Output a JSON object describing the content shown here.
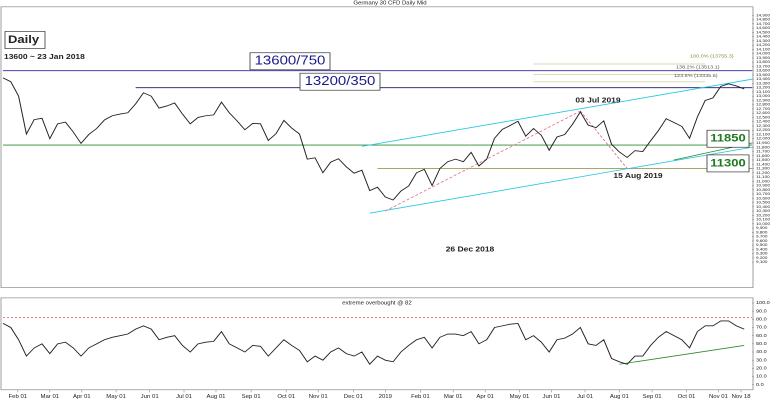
{
  "chart_data": [
    {
      "type": "line",
      "title": "Germany 30 CFD Daily Mid",
      "x": [
        0,
        1,
        2,
        3,
        4,
        5,
        6,
        7,
        8,
        9,
        10,
        11,
        12,
        13,
        14,
        15,
        16,
        17,
        18,
        19,
        20,
        21,
        22,
        23,
        24,
        25,
        26,
        27,
        28,
        29,
        30,
        31,
        32,
        33,
        34,
        35,
        36,
        37,
        38,
        39,
        40,
        41,
        42,
        43,
        44,
        45,
        46,
        47,
        48,
        49,
        50,
        51,
        52,
        53,
        54,
        55,
        56,
        57,
        58,
        59,
        60,
        61,
        62,
        63,
        64,
        65,
        66,
        67,
        68,
        69,
        70,
        71,
        72,
        73,
        74,
        75,
        76,
        77,
        78,
        79,
        80,
        81,
        82,
        83,
        84,
        85,
        86,
        87,
        88,
        89,
        90,
        91,
        92,
        93,
        94,
        95
      ],
      "series": [
        {
          "color": "#222222",
          "values": [
            13430,
            13340,
            13000,
            12110,
            12450,
            12480,
            12000,
            12350,
            12390,
            12160,
            11890,
            12100,
            12240,
            12440,
            12540,
            12580,
            12610,
            12820,
            13080,
            13000,
            12720,
            12770,
            12840,
            12580,
            12350,
            12500,
            12540,
            12560,
            12860,
            12610,
            12420,
            12210,
            12360,
            12350,
            11960,
            12120,
            12430,
            12250,
            12110,
            11520,
            11550,
            11200,
            11450,
            11530,
            11340,
            11190,
            11260,
            10780,
            10860,
            10630,
            10560,
            10770,
            10890,
            11200,
            11280,
            10900,
            11300,
            11460,
            11520,
            11460,
            11680,
            11360,
            11520,
            12010,
            12220,
            12310,
            12410,
            12060,
            12240,
            12080,
            11730,
            12040,
            12100,
            12340,
            12630,
            12320,
            12260,
            12420,
            11870,
            11690,
            11560,
            11720,
            11700,
            11950,
            12190,
            12470,
            12380,
            12290,
            12010,
            12510,
            12900,
            12960,
            13230,
            13290,
            13240,
            13170
          ]
        }
      ],
      "xlim": [
        0,
        96
      ],
      "ylim": [
        8600,
        15100
      ],
      "yticks": [
        {
          "value": 9100,
          "label": "9,100"
        },
        {
          "value": 9200,
          "label": "9,200"
        },
        {
          "value": 9300,
          "label": "9,300"
        },
        {
          "value": 9400,
          "label": "9,400"
        },
        {
          "value": 9500,
          "label": "9,500"
        },
        {
          "value": 9600,
          "label": "9,600"
        },
        {
          "value": 9700,
          "label": "9,700"
        },
        {
          "value": 9800,
          "label": "9,800"
        },
        {
          "value": 9900,
          "label": "9,900"
        },
        {
          "value": 10000,
          "label": "10,000"
        },
        {
          "value": 10100,
          "label": "10,100"
        },
        {
          "value": 10200,
          "label": "10,200"
        },
        {
          "value": 10300,
          "label": "10,300"
        },
        {
          "value": 10400,
          "label": "10,400"
        },
        {
          "value": 10500,
          "label": "10,500"
        },
        {
          "value": 10600,
          "label": "10,600"
        },
        {
          "value": 10700,
          "label": "10,700"
        },
        {
          "value": 10800,
          "label": "10,800"
        },
        {
          "value": 10900,
          "label": "10,900"
        },
        {
          "value": 11000,
          "label": "11,000"
        },
        {
          "value": 11100,
          "label": "11,100"
        },
        {
          "value": 11200,
          "label": "11,200"
        },
        {
          "value": 11300,
          "label": "11,300"
        },
        {
          "value": 11400,
          "label": "11,400"
        },
        {
          "value": 11500,
          "label": "11,500"
        },
        {
          "value": 11600,
          "label": "11,600"
        },
        {
          "value": 11700,
          "label": "11,700"
        },
        {
          "value": 11800,
          "label": "11,800"
        },
        {
          "value": 11900,
          "label": "11,900"
        },
        {
          "value": 12000,
          "label": "12,000"
        },
        {
          "value": 12100,
          "label": "12,100"
        },
        {
          "value": 12200,
          "label": "12,200"
        },
        {
          "value": 12300,
          "label": "12,300"
        },
        {
          "value": 12400,
          "label": "12,400"
        },
        {
          "value": 12500,
          "label": "12,500"
        },
        {
          "value": 12600,
          "label": "12,600"
        },
        {
          "value": 12700,
          "label": "12,700"
        },
        {
          "value": 12800,
          "label": "12,800"
        },
        {
          "value": 12900,
          "label": "12,900"
        },
        {
          "value": 13000,
          "label": "13,000"
        },
        {
          "value": 13100,
          "label": "13,100"
        },
        {
          "value": 13200,
          "label": "13,200"
        },
        {
          "value": 13300,
          "label": "13,300"
        },
        {
          "value": 13400,
          "label": "13,400"
        },
        {
          "value": 13500,
          "label": "13,500"
        },
        {
          "value": 13600,
          "label": "13,600"
        },
        {
          "value": 13700,
          "label": "13,700"
        },
        {
          "value": 13800,
          "label": "13,800"
        },
        {
          "value": 13900,
          "label": "13,900"
        },
        {
          "value": 14000,
          "label": "14,000"
        },
        {
          "value": 14100,
          "label": "14,100"
        },
        {
          "value": 14200,
          "label": "14,200"
        },
        {
          "value": 14300,
          "label": "14,300"
        },
        {
          "value": 14400,
          "label": "14,400"
        },
        {
          "value": 14500,
          "label": "14,500"
        },
        {
          "value": 14600,
          "label": "14,600"
        },
        {
          "value": 14700,
          "label": "14,700"
        },
        {
          "value": 14800,
          "label": "14,800"
        },
        {
          "value": 14900,
          "label": "14,900"
        }
      ],
      "levels": [
        {
          "value": 13600,
          "x": [
            0,
            96
          ],
          "color": "#2a2aa0"
        },
        {
          "value": 13200,
          "x": [
            17,
            96
          ],
          "color": "#1a1a70"
        },
        {
          "value": 11850,
          "x": [
            0,
            96
          ],
          "color": "#2e8b2e"
        },
        {
          "value": 11300,
          "x": [
            48,
            96
          ],
          "color": "#8a8a3a"
        },
        {
          "value": 13755.3,
          "x": [
            68,
            90
          ],
          "color": "#b5b56a"
        },
        {
          "value": 13513.1,
          "x": [
            68,
            90
          ],
          "color": "#b5b56a"
        },
        {
          "value": 13335.5,
          "x": [
            68,
            90
          ],
          "color": "#b5b56a"
        }
      ],
      "trendlines": [
        {
          "x": [
            46,
            96
          ],
          "y": [
            11820,
            13400
          ],
          "color": "#22c8e0"
        },
        {
          "x": [
            47,
            96
          ],
          "y": [
            10250,
            11800
          ],
          "color": "#22c8e0"
        },
        {
          "x": [
            86,
            96
          ],
          "y": [
            11500,
            11900
          ],
          "color": "#2e8b2e"
        },
        {
          "x": [
            49,
            74
          ],
          "y": [
            10300,
            12650
          ],
          "color": "#e07a8a",
          "dashed": true
        },
        {
          "x": [
            74,
            80
          ],
          "y": [
            12650,
            11300
          ],
          "color": "#e07a8a",
          "dashed": true
        }
      ],
      "annotations": [
        "Daily",
        "13600 ~ 23 Jan 2018",
        "13600/750",
        "13200/350",
        "03 Jul 2019",
        "26 Dec 2018",
        "15 Aug 2019",
        "11850",
        "11300",
        "100.0% (13755.3)",
        "138.2% (13513.1)",
        "123.6% (13335.5)"
      ]
    },
    {
      "type": "line",
      "title": "extreme overbought @ 82",
      "x": [
        0,
        1,
        2,
        3,
        4,
        5,
        6,
        7,
        8,
        9,
        10,
        11,
        12,
        13,
        14,
        15,
        16,
        17,
        18,
        19,
        20,
        21,
        22,
        23,
        24,
        25,
        26,
        27,
        28,
        29,
        30,
        31,
        32,
        33,
        34,
        35,
        36,
        37,
        38,
        39,
        40,
        41,
        42,
        43,
        44,
        45,
        46,
        47,
        48,
        49,
        50,
        51,
        52,
        53,
        54,
        55,
        56,
        57,
        58,
        59,
        60,
        61,
        62,
        63,
        64,
        65,
        66,
        67,
        68,
        69,
        70,
        71,
        72,
        73,
        74,
        75,
        76,
        77,
        78,
        79,
        80,
        81,
        82,
        83,
        84,
        85,
        86,
        87,
        88,
        89,
        90,
        91,
        92,
        93,
        94,
        95
      ],
      "series": [
        {
          "color": "#222222",
          "values": [
            75,
            70,
            55,
            35,
            45,
            50,
            38,
            50,
            52,
            45,
            35,
            45,
            50,
            55,
            58,
            60,
            62,
            68,
            72,
            68,
            55,
            58,
            60,
            48,
            40,
            50,
            52,
            53,
            65,
            50,
            45,
            40,
            48,
            47,
            35,
            45,
            55,
            48,
            42,
            28,
            35,
            30,
            40,
            45,
            38,
            35,
            40,
            25,
            35,
            30,
            28,
            40,
            48,
            55,
            58,
            45,
            58,
            62,
            62,
            60,
            65,
            50,
            55,
            70,
            72,
            74,
            75,
            55,
            60,
            52,
            40,
            55,
            57,
            62,
            70,
            50,
            48,
            55,
            32,
            28,
            25,
            35,
            35,
            48,
            58,
            65,
            60,
            55,
            45,
            65,
            72,
            72,
            78,
            78,
            72,
            68
          ]
        }
      ],
      "overbought": 82,
      "xlim": [
        0,
        96
      ],
      "ylim": [
        0,
        100
      ],
      "yticks": [
        {
          "value": 0,
          "label": "0.0"
        },
        {
          "value": 10,
          "label": "10.0"
        },
        {
          "value": 20,
          "label": "20.0"
        },
        {
          "value": 30,
          "label": "30.0"
        },
        {
          "value": 40,
          "label": "40.0"
        },
        {
          "value": 50,
          "label": "50.0"
        },
        {
          "value": 60,
          "label": "60.0"
        },
        {
          "value": 70,
          "label": "70.0"
        },
        {
          "value": 80,
          "label": "80.0"
        },
        {
          "value": 90,
          "label": "90.0"
        },
        {
          "value": 100,
          "label": "100.0"
        }
      ],
      "xticks": [
        {
          "value": 1.9,
          "label": "Feb 01"
        },
        {
          "value": 6.0,
          "label": "Mar 01"
        },
        {
          "value": 10.1,
          "label": "Apr 01"
        },
        {
          "value": 14.5,
          "label": "May 01"
        },
        {
          "value": 18.8,
          "label": "Jun 01"
        },
        {
          "value": 23.2,
          "label": "Jul 01"
        },
        {
          "value": 27.3,
          "label": "Aug 01"
        },
        {
          "value": 31.8,
          "label": "Sep 01"
        },
        {
          "value": 36.3,
          "label": "Oct 01"
        },
        {
          "value": 40.4,
          "label": "Nov 01"
        },
        {
          "value": 44.9,
          "label": "Dec 01"
        },
        {
          "value": 49.0,
          "label": "2019"
        },
        {
          "value": 53.5,
          "label": "Feb 01"
        },
        {
          "value": 57.7,
          "label": "Mar 01"
        },
        {
          "value": 61.8,
          "label": "Apr 01"
        },
        {
          "value": 66.2,
          "label": "May 01"
        },
        {
          "value": 70.3,
          "label": "Jun 01"
        },
        {
          "value": 74.6,
          "label": "Jul 01"
        },
        {
          "value": 79.0,
          "label": "Aug 01"
        },
        {
          "value": 83.2,
          "label": "Sep 01"
        },
        {
          "value": 87.6,
          "label": "Oct 01"
        },
        {
          "value": 91.7,
          "label": "Nov 01"
        },
        {
          "value": 94.6,
          "label": "Nov 18"
        }
      ],
      "trendlines": [
        {
          "x": [
            79,
            95
          ],
          "y": [
            25,
            48
          ],
          "color": "#2e8b2e"
        }
      ]
    }
  ]
}
